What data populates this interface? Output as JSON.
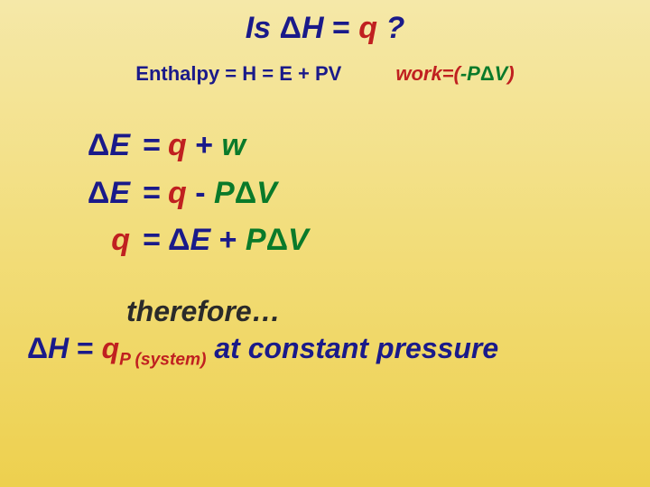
{
  "colors": {
    "background_gradient": [
      "#f5e8a8",
      "#f2dd7a",
      "#edd04e"
    ],
    "blue": "#1a1a8a",
    "red": "#c02020",
    "green": "#0a7a2a",
    "dark": "#2a2a2a"
  },
  "fonts": {
    "family": "Comic Sans MS",
    "title_size_pt": 34,
    "subtitle_size_pt": 22,
    "equation_size_pt": 34,
    "conclusion_size_pt": 32
  },
  "title": {
    "prefix": "Is ",
    "delta": "Δ",
    "H": "H",
    "eq": " = ",
    "q": "q",
    "suffix": " ?"
  },
  "subtitle": {
    "enthalpy": "Enthalpy = H = E + PV",
    "work_label": "work=(",
    "work_minus": "-P",
    "work_delta": "Δ",
    "work_V": "V",
    "work_close": ")"
  },
  "equations": [
    {
      "lhs_delta": "Δ",
      "lhs": "E",
      "eq": "=",
      "rhs": [
        {
          "text": "q",
          "color": "red",
          "italic": true
        },
        {
          "text": " + ",
          "color": "blue",
          "italic": false
        },
        {
          "text": "w",
          "color": "green",
          "italic": true
        }
      ]
    },
    {
      "lhs_delta": "Δ",
      "lhs": "E",
      "eq": "=",
      "rhs": [
        {
          "text": "q",
          "color": "red",
          "italic": true
        },
        {
          "text": " - ",
          "color": "blue",
          "italic": false
        },
        {
          "text": "P",
          "color": "green",
          "italic": true
        },
        {
          "text": "Δ",
          "color": "green",
          "italic": false
        },
        {
          "text": "V",
          "color": "green",
          "italic": true
        }
      ]
    },
    {
      "lhs_delta": "",
      "lhs": "q",
      "eq": "=",
      "rhs": [
        {
          "text": "Δ",
          "color": "blue",
          "italic": false
        },
        {
          "text": "E",
          "color": "blue",
          "italic": true
        },
        {
          "text": " + ",
          "color": "blue",
          "italic": false
        },
        {
          "text": "P",
          "color": "green",
          "italic": true
        },
        {
          "text": "Δ",
          "color": "green",
          "italic": false
        },
        {
          "text": "V",
          "color": "green",
          "italic": true
        }
      ]
    }
  ],
  "therefore": "therefore…",
  "conclusion": {
    "delta": "Δ",
    "H": "H",
    "eq": " = ",
    "q": "q",
    "sub": "P (system)",
    "rest": " at constant pressure"
  }
}
